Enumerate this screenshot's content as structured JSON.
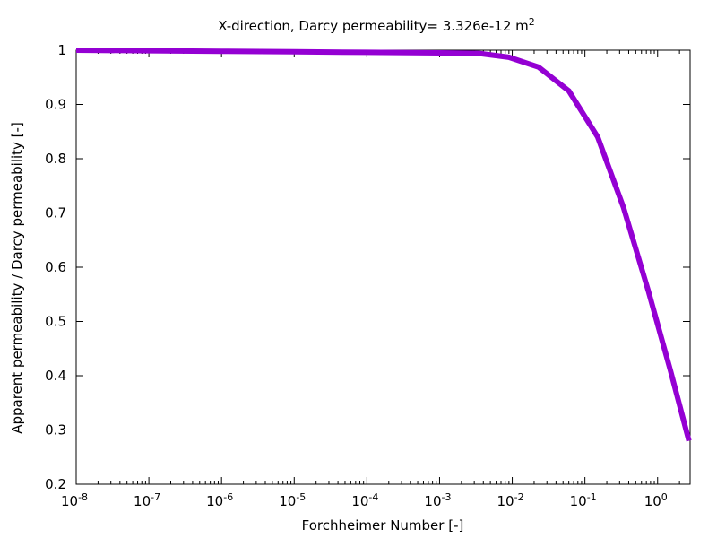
{
  "chart_data": {
    "type": "line",
    "title": {
      "text": "X-direction, Darcy permeability= 3.326e-12 m",
      "superscript": "2"
    },
    "xlabel": "Forchheimer Number [-]",
    "ylabel": "Apparent permeability / Darcy permeability [-]",
    "xscale": "log",
    "xlim": [
      1e-08,
      2.8
    ],
    "ylim": [
      0.2,
      1.0
    ],
    "grid": false,
    "legend": "none",
    "x_ticks": [
      {
        "base": "10",
        "exp": "-8",
        "value": 1e-08
      },
      {
        "base": "10",
        "exp": "-7",
        "value": 1e-07
      },
      {
        "base": "10",
        "exp": "-6",
        "value": 1e-06
      },
      {
        "base": "10",
        "exp": "-5",
        "value": 1e-05
      },
      {
        "base": "10",
        "exp": "-4",
        "value": 0.0001
      },
      {
        "base": "10",
        "exp": "-3",
        "value": 0.001
      },
      {
        "base": "10",
        "exp": "-2",
        "value": 0.01
      },
      {
        "base": "10",
        "exp": "-1",
        "value": 0.1
      },
      {
        "base": "10",
        "exp": "0",
        "value": 1
      }
    ],
    "y_ticks": [
      {
        "label": "1",
        "value": 1.0
      },
      {
        "label": "0.9",
        "value": 0.9
      },
      {
        "label": "0.8",
        "value": 0.8
      },
      {
        "label": "0.7",
        "value": 0.7
      },
      {
        "label": "0.6",
        "value": 0.6
      },
      {
        "label": "0.5",
        "value": 0.5
      },
      {
        "label": "0.4",
        "value": 0.4
      },
      {
        "label": "0.3",
        "value": 0.3
      },
      {
        "label": "0.2",
        "value": 0.2
      }
    ],
    "series": [
      {
        "color": "#9400d3",
        "x": [
          1e-08,
          1e-07,
          1e-06,
          1e-05,
          0.0001,
          0.001,
          0.0035,
          0.009,
          0.023,
          0.06,
          0.15,
          0.34,
          0.75,
          1.5,
          2.7
        ],
        "y": [
          1.0,
          0.999,
          0.998,
          0.997,
          0.996,
          0.995,
          0.994,
          0.987,
          0.969,
          0.925,
          0.84,
          0.71,
          0.555,
          0.41,
          0.28
        ]
      }
    ]
  }
}
